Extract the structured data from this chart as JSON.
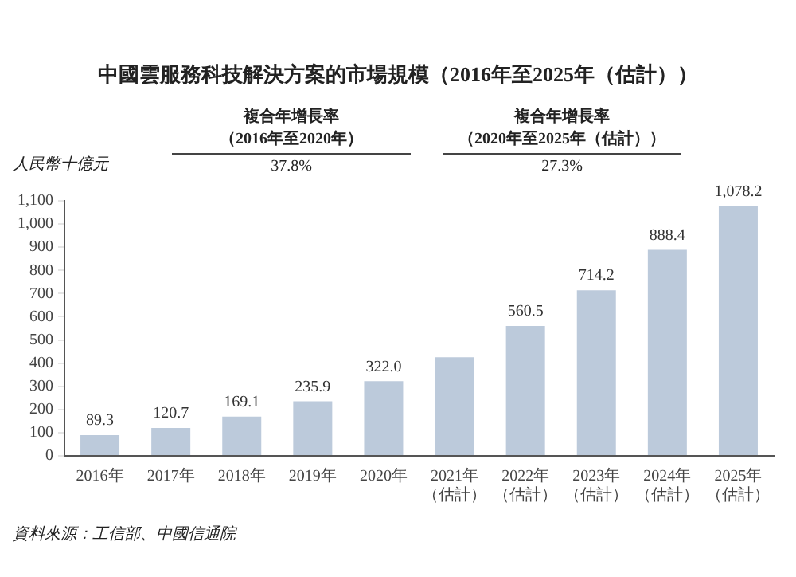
{
  "chart_data": {
    "type": "bar",
    "title": "中國雲服務科技解決方案的市場規模（2016年至2025年（估計））",
    "ylabel": "人民幣十億元",
    "categories": [
      "2016年",
      "2017年",
      "2018年",
      "2019年",
      "2020年",
      "2021年（估計）",
      "2022年（估計）",
      "2023年（估計）",
      "2024年（估計）",
      "2025年（估計）"
    ],
    "values": [
      89.3,
      120.7,
      169.1,
      235.9,
      322.0,
      425,
      560.5,
      714.2,
      888.4,
      1078.2
    ],
    "value_labels": [
      "89.3",
      "120.7",
      "169.1",
      "235.9",
      "322.0",
      null,
      "560.5",
      "714.2",
      "888.4",
      "1,078.2"
    ],
    "color": "#bccadb",
    "ylim": [
      0,
      1100
    ],
    "yticks": [
      0,
      100,
      200,
      300,
      400,
      500,
      600,
      700,
      800,
      900,
      {
        "value": 1000,
        "label": "1,000"
      },
      {
        "value": 1100,
        "label": "1,100"
      }
    ],
    "grid": false,
    "annotations": [
      "複合年增長率（2016年至2020年）",
      "37.8%",
      "複合年增長率（2020年至2025年（估計））",
      "27.3%",
      "資料來源：工信部、中國信通院"
    ]
  }
}
